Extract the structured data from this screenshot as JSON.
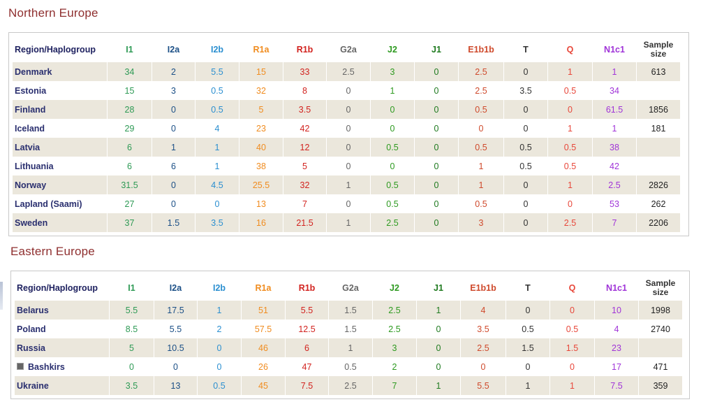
{
  "columns": [
    {
      "key": "I1",
      "label": "I1"
    },
    {
      "key": "I2a",
      "label": "I2a"
    },
    {
      "key": "I2b",
      "label": "I2b"
    },
    {
      "key": "R1a",
      "label": "R1a"
    },
    {
      "key": "R1b",
      "label": "R1b"
    },
    {
      "key": "G2a",
      "label": "G2a"
    },
    {
      "key": "J2",
      "label": "J2"
    },
    {
      "key": "J1",
      "label": "J1"
    },
    {
      "key": "E1b1b",
      "label": "E1b1b"
    },
    {
      "key": "T",
      "label": "T"
    },
    {
      "key": "Q",
      "label": "Q"
    },
    {
      "key": "N1c1",
      "label": "N1c1"
    }
  ],
  "header": {
    "region": "Region/Haplogroup",
    "size_line1": "Sample",
    "size_line2": "size"
  },
  "column_colors": {
    "I1": "#2e9a55",
    "I2a": "#1b4f86",
    "I2b": "#2b8fd0",
    "R1a": "#f08c1f",
    "R1b": "#d2231f",
    "G2a": "#666666",
    "J2": "#2e9a20",
    "J1": "#1f7a1f",
    "E1b1b": "#cf4a2c",
    "T": "#333333",
    "Q": "#e8473a",
    "N1c1": "#a034d8"
  },
  "sections": [
    {
      "title": "Northern Europe",
      "rows": [
        {
          "name": "Denmark",
          "values": [
            "34",
            "2",
            "5.5",
            "15",
            "33",
            "2.5",
            "3",
            "0",
            "2.5",
            "0",
            "1",
            "1"
          ],
          "size": "613"
        },
        {
          "name": "Estonia",
          "values": [
            "15",
            "3",
            "0.5",
            "32",
            "8",
            "0",
            "1",
            "0",
            "2.5",
            "3.5",
            "0.5",
            "34"
          ],
          "size": ""
        },
        {
          "name": "Finland",
          "values": [
            "28",
            "0",
            "0.5",
            "5",
            "3.5",
            "0",
            "0",
            "0",
            "0.5",
            "0",
            "0",
            "61.5"
          ],
          "size": "1856"
        },
        {
          "name": "Iceland",
          "values": [
            "29",
            "0",
            "4",
            "23",
            "42",
            "0",
            "0",
            "0",
            "0",
            "0",
            "1",
            "1"
          ],
          "size": "181"
        },
        {
          "name": "Latvia",
          "values": [
            "6",
            "1",
            "1",
            "40",
            "12",
            "0",
            "0.5",
            "0",
            "0.5",
            "0.5",
            "0.5",
            "38"
          ],
          "size": ""
        },
        {
          "name": "Lithuania",
          "values": [
            "6",
            "6",
            "1",
            "38",
            "5",
            "0",
            "0",
            "0",
            "1",
            "0.5",
            "0.5",
            "42"
          ],
          "size": ""
        },
        {
          "name": "Norway",
          "values": [
            "31.5",
            "0",
            "4.5",
            "25.5",
            "32",
            "1",
            "0.5",
            "0",
            "1",
            "0",
            "1",
            "2.5"
          ],
          "size": "2826"
        },
        {
          "name": "Lapland (Saami)",
          "values": [
            "27",
            "0",
            "0",
            "13",
            "7",
            "0",
            "0.5",
            "0",
            "0.5",
            "0",
            "0",
            "53"
          ],
          "size": "262"
        },
        {
          "name": "Sweden",
          "values": [
            "37",
            "1.5",
            "3.5",
            "16",
            "21.5",
            "1",
            "2.5",
            "0",
            "3",
            "0",
            "2.5",
            "7"
          ],
          "size": "2206"
        }
      ]
    },
    {
      "title": "Eastern Europe",
      "rows": [
        {
          "name": "Belarus",
          "values": [
            "5.5",
            "17.5",
            "1",
            "51",
            "5.5",
            "1.5",
            "2.5",
            "1",
            "4",
            "0",
            "0",
            "10"
          ],
          "size": "1998"
        },
        {
          "name": "Poland",
          "values": [
            "8.5",
            "5.5",
            "2",
            "57.5",
            "12.5",
            "1.5",
            "2.5",
            "0",
            "3.5",
            "0.5",
            "0.5",
            "4"
          ],
          "size": "2740"
        },
        {
          "name": "Russia",
          "values": [
            "5",
            "10.5",
            "0",
            "46",
            "6",
            "1",
            "3",
            "0",
            "2.5",
            "1.5",
            "1.5",
            "23"
          ],
          "size": ""
        },
        {
          "name": "Bashkirs",
          "values": [
            "0",
            "0",
            "0",
            "26",
            "47",
            "0.5",
            "2",
            "0",
            "0",
            "0",
            "0",
            "17"
          ],
          "size": "471",
          "sub": true
        },
        {
          "name": "Ukraine",
          "values": [
            "3.5",
            "13",
            "0.5",
            "45",
            "7.5",
            "2.5",
            "7",
            "1",
            "5.5",
            "1",
            "1",
            "7.5"
          ],
          "size": "359"
        }
      ]
    }
  ]
}
